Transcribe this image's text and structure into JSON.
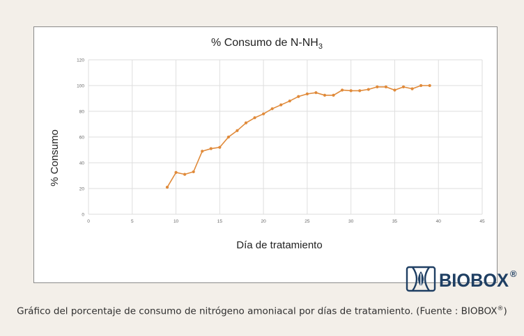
{
  "chart_data": {
    "type": "line",
    "title_main": "% Consumo de N-NH",
    "title_sub": "3",
    "xlabel": "Día de tratamiento",
    "ylabel": "% Consumo",
    "xlim": [
      0,
      45
    ],
    "ylim": [
      0,
      120
    ],
    "xticks": [
      0,
      5,
      10,
      15,
      20,
      25,
      30,
      35,
      40,
      45
    ],
    "yticks": [
      0,
      20,
      40,
      60,
      80,
      100,
      120
    ],
    "grid": "horizontal and vertical",
    "legend": "none",
    "series_color": "#e08a3a",
    "series": [
      {
        "x": [
          9,
          10,
          11,
          12,
          13,
          14,
          15,
          16,
          17,
          18,
          19,
          20,
          21,
          22,
          23,
          24,
          25,
          26,
          27,
          28,
          29,
          30,
          31,
          32,
          33,
          34,
          35,
          36,
          37,
          38,
          39
        ],
        "y": [
          21,
          32.5,
          31,
          33,
          49,
          51,
          52,
          60,
          65,
          71,
          75,
          78,
          82,
          85,
          88,
          91.5,
          93.5,
          94.5,
          92.5,
          92.5,
          96.5,
          96,
          96,
          97,
          99,
          99,
          96.5,
          99,
          97.5,
          100,
          100
        ]
      }
    ]
  },
  "logo": {
    "text": "BIOBOX",
    "mark": "®",
    "color": "#1f3f63"
  },
  "caption": {
    "text": "Gráfico del porcentaje de consumo de nitrógeno amoniacal por días de tratamiento. (Fuente : BIOBOX",
    "mark": "®",
    "close": ")"
  }
}
